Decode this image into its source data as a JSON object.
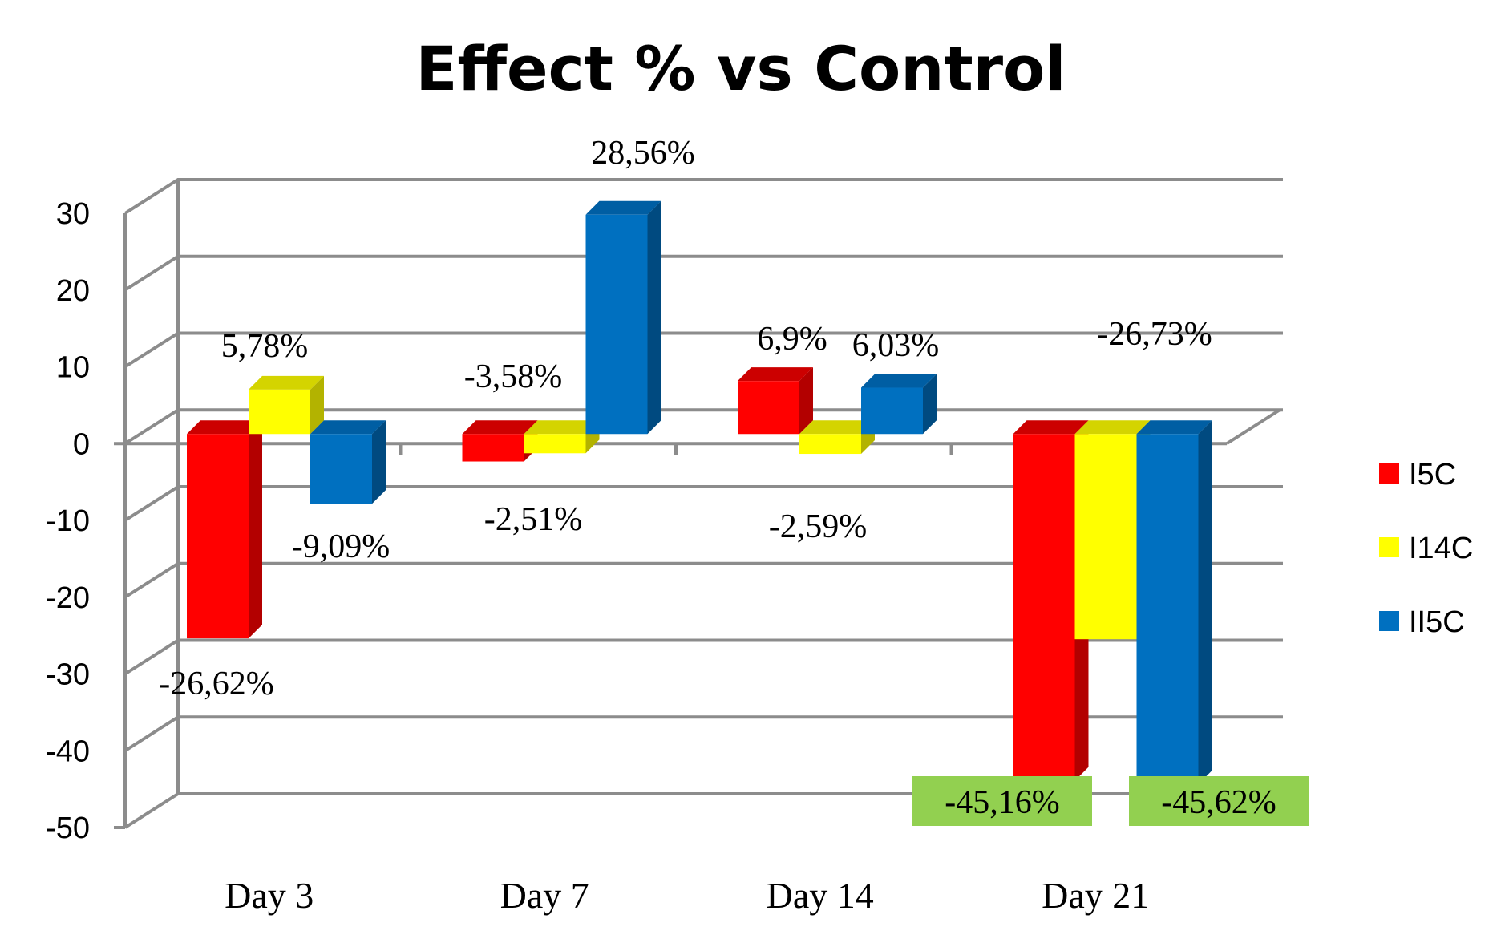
{
  "chart_data": {
    "type": "bar",
    "title": "Effect % vs Control",
    "xlabel": "",
    "ylabel": "",
    "ylim": [
      -50,
      30
    ],
    "yticks": [
      30,
      20,
      10,
      0,
      -10,
      -20,
      -30,
      -40,
      -50
    ],
    "ytick_labels": [
      "30",
      "20",
      "10",
      "0",
      "-10",
      "-20",
      "-30",
      "-40",
      "-50"
    ],
    "grid": true,
    "legend": "right",
    "categories": [
      "Day 3",
      "Day 7",
      "Day 14",
      "Day 21"
    ],
    "series": [
      {
        "name": "I5C",
        "color": "#ff0000",
        "side_color": "#b30000",
        "top_color": "#cc0000",
        "values": [
          -26.62,
          -3.58,
          6.9,
          -45.16
        ],
        "labels": [
          "-26,62%",
          "-3,58%",
          "6,9%",
          "-45,16%"
        ]
      },
      {
        "name": "I14C",
        "color": "#ffff00",
        "side_color": "#b3b300",
        "top_color": "#d4d400",
        "values": [
          5.78,
          -2.51,
          -2.59,
          -26.73
        ],
        "labels": [
          "5,78%",
          "-2,51%",
          "-2,59%",
          "-26,73%"
        ]
      },
      {
        "name": "II5C",
        "color": "#0070c0",
        "side_color": "#004a80",
        "top_color": "#005ea3",
        "values": [
          -9.09,
          28.56,
          6.03,
          -45.62
        ],
        "labels": [
          "-9,09%",
          "28,56%",
          "6,03%",
          "-45,62%"
        ]
      }
    ],
    "highlighted_labels": [
      "-45,16%",
      "-45,62%"
    ],
    "highlight_color": "#92d050"
  }
}
